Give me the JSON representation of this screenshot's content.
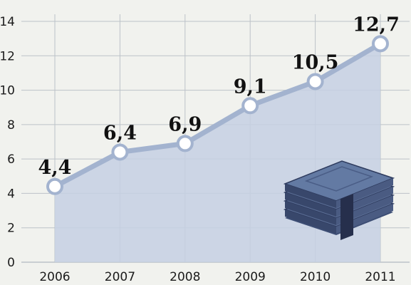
{
  "chart_data": {
    "type": "area",
    "categories": [
      "2006",
      "2007",
      "2008",
      "2009",
      "2010",
      "2011"
    ],
    "series": [
      {
        "values": [
          4.4,
          6.4,
          6.9,
          9.1,
          10.5,
          12.7
        ],
        "labels": [
          "4,4",
          "6,4",
          "6,9",
          "9,1",
          "10,5",
          "12,7"
        ]
      }
    ],
    "yticks": [
      "0",
      "2",
      "4",
      "6",
      "8",
      "10",
      "12",
      "14"
    ],
    "ylim": [
      0,
      14
    ],
    "grid": true,
    "title": "",
    "xlabel": "",
    "ylabel": ""
  },
  "colors": {
    "background": "#f1f2ee",
    "area": "#c5d0e3",
    "line": "#a3b3cf",
    "marker_fill": "#ffffff",
    "grid": "#bcc2c8",
    "money_top": "#5a6d94",
    "money_side": "#38476b",
    "money_band": "#2a3658"
  },
  "decoration": {
    "icon": "banknote-stack-icon"
  }
}
